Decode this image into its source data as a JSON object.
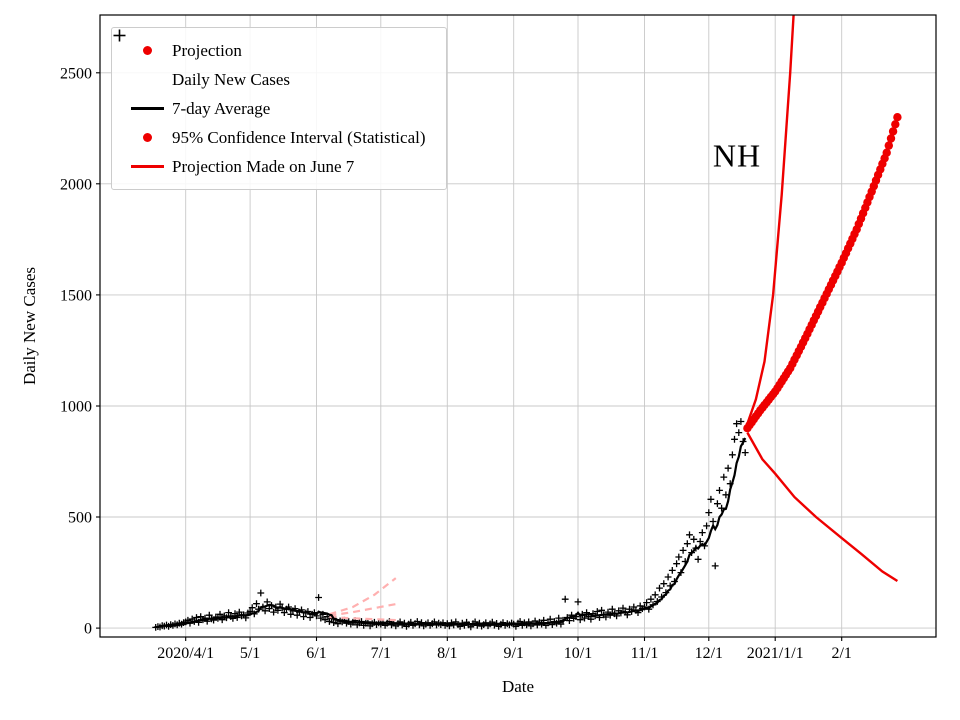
{
  "annotation": {
    "text": "NH"
  },
  "chart_data": {
    "type": "line",
    "title": "",
    "xlabel": "Date",
    "ylabel": "Daily New Cases",
    "grid": true,
    "legend_position": "upper left",
    "x_domain": [
      "2020-02-21",
      "2021-03-17"
    ],
    "y_domain": [
      -40,
      2760
    ],
    "x_ticks": [
      {
        "date": "2020-04-01",
        "label": "2020/4/1"
      },
      {
        "date": "2020-05-01",
        "label": "5/1"
      },
      {
        "date": "2020-06-01",
        "label": "6/1"
      },
      {
        "date": "2020-07-01",
        "label": "7/1"
      },
      {
        "date": "2020-08-01",
        "label": "8/1"
      },
      {
        "date": "2020-09-01",
        "label": "9/1"
      },
      {
        "date": "2020-10-01",
        "label": "10/1"
      },
      {
        "date": "2020-11-01",
        "label": "11/1"
      },
      {
        "date": "2020-12-01",
        "label": "12/1"
      },
      {
        "date": "2021-01-01",
        "label": "2021/1/1"
      },
      {
        "date": "2021-02-01",
        "label": "2/1"
      }
    ],
    "y_ticks": [
      {
        "value": 0,
        "label": "0"
      },
      {
        "value": 500,
        "label": "500"
      },
      {
        "value": 1000,
        "label": "1000"
      },
      {
        "value": 1500,
        "label": "1500"
      },
      {
        "value": 2000,
        "label": "2000"
      },
      {
        "value": 2500,
        "label": "2500"
      }
    ],
    "colors": {
      "red": "#ee0000",
      "black": "#000000",
      "pink": "#ffb0b0",
      "grid": "#c8c8c8"
    },
    "legend": [
      {
        "label": "Projection",
        "marker": "dot",
        "color": "#ee0000"
      },
      {
        "label": "Daily New Cases",
        "marker": "plus",
        "color": "#000000"
      },
      {
        "label": "7-day Average",
        "marker": "line",
        "color": "#000000"
      },
      {
        "label": "95% Confidence Interval (Statistical)",
        "marker": "dot",
        "color": "#ee0000"
      },
      {
        "label": "Projection Made on June 7",
        "marker": "line",
        "color": "#ee0000"
      }
    ],
    "series": {
      "daily_new_cases": {
        "type": "scatter-plus",
        "color": "#000000",
        "start": "2020-03-18",
        "values": [
          3,
          7,
          5,
          11,
          9,
          14,
          8,
          16,
          12,
          19,
          15,
          22,
          18,
          25,
          28,
          35,
          22,
          41,
          30,
          48,
          26,
          52,
          38,
          45,
          31,
          58,
          42,
          36,
          50,
          44,
          62,
          38,
          55,
          47,
          70,
          52,
          44,
          65,
          48,
          72,
          55,
          60,
          46,
          68,
          75,
          92,
          64,
          110,
          85,
          158,
          95,
          78,
          118,
          88,
          102,
          72,
          95,
          80,
          108,
          90,
          70,
          85,
          95,
          62,
          78,
          88,
          58,
          72,
          82,
          52,
          68,
          75,
          48,
          62,
          70,
          55,
          138,
          45,
          62,
          38,
          52,
          30,
          44,
          25,
          38,
          20,
          32,
          28,
          35,
          22,
          30,
          18,
          26,
          34,
          15,
          24,
          30,
          12,
          22,
          28,
          10,
          20,
          26,
          16,
          24,
          18,
          26,
          12,
          22,
          30,
          15,
          24,
          10,
          20,
          28,
          14,
          22,
          8,
          18,
          26,
          12,
          20,
          30,
          15,
          25,
          10,
          18,
          24,
          12,
          20,
          28,
          14,
          22,
          16,
          24,
          12,
          20,
          10,
          24,
          14,
          28,
          16,
          8,
          22,
          12,
          26,
          15,
          6,
          20,
          28,
          12,
          22,
          9,
          16,
          24,
          11,
          19,
          27,
          13,
          21,
          8,
          17,
          25,
          12,
          20,
          15,
          23,
          18,
          8,
          22,
          30,
          12,
          24,
          15,
          28,
          10,
          20,
          32,
          14,
          26,
          18,
          35,
          12,
          24,
          40,
          16,
          30,
          22,
          45,
          18,
          35,
          130,
          48,
          34,
          58,
          44,
          52,
          118,
          38,
          62,
          45,
          70,
          52,
          40,
          65,
          55,
          75,
          48,
          80,
          60,
          50,
          72,
          58,
          85,
          65,
          55,
          78,
          68,
          90,
          72,
          60,
          85,
          75,
          95,
          80,
          70,
          100,
          88,
          95,
          115,
          85,
          130,
          105,
          150,
          120,
          180,
          140,
          200,
          160,
          230,
          190,
          260,
          210,
          290,
          320,
          250,
          350,
          300,
          380,
          420,
          340,
          400,
          360,
          310,
          390,
          430,
          370,
          460,
          520,
          580,
          480,
          280,
          560,
          620,
          540,
          680,
          600,
          720,
          650,
          780,
          850,
          920,
          880,
          930,
          840,
          790
        ]
      },
      "seven_day_average": {
        "type": "line",
        "color": "#000000",
        "derived_from": "daily_new_cases",
        "window": 7
      },
      "projection": {
        "type": "dotted-line",
        "color": "#ee0000",
        "points": [
          [
            "2020-12-19",
            900
          ],
          [
            "2020-12-25",
            980
          ],
          [
            "2021-01-01",
            1065
          ],
          [
            "2021-01-08",
            1170
          ],
          [
            "2021-01-15",
            1305
          ],
          [
            "2021-01-22",
            1445
          ],
          [
            "2021-02-01",
            1645
          ],
          [
            "2021-02-08",
            1795
          ],
          [
            "2021-02-15",
            1965
          ],
          [
            "2021-02-22",
            2140
          ],
          [
            "2021-02-27",
            2300
          ]
        ]
      },
      "ci_upper": {
        "type": "line",
        "color": "#ee0000",
        "points": [
          [
            "2020-12-19",
            920
          ],
          [
            "2020-12-23",
            1030
          ],
          [
            "2020-12-27",
            1200
          ],
          [
            "2020-12-31",
            1500
          ],
          [
            "2021-01-04",
            1950
          ],
          [
            "2021-01-08",
            2500
          ],
          [
            "2021-01-11",
            3000
          ]
        ]
      },
      "ci_lower": {
        "type": "line",
        "color": "#ee0000",
        "points": [
          [
            "2020-12-19",
            880
          ],
          [
            "2020-12-26",
            760
          ],
          [
            "2021-01-01",
            695
          ],
          [
            "2021-01-10",
            590
          ],
          [
            "2021-01-20",
            500
          ],
          [
            "2021-02-01",
            405
          ],
          [
            "2021-02-10",
            335
          ],
          [
            "2021-02-20",
            255
          ],
          [
            "2021-02-27",
            212
          ]
        ]
      },
      "june7_projection": {
        "type": "dashed-lines",
        "color": "#ffb0b0",
        "lines": [
          [
            [
              "2020-06-07",
              62
            ],
            [
              "2020-06-18",
              95
            ],
            [
              "2020-06-28",
              150
            ],
            [
              "2020-07-08",
              225
            ]
          ],
          [
            [
              "2020-06-07",
              56
            ],
            [
              "2020-06-18",
              72
            ],
            [
              "2020-06-28",
              90
            ],
            [
              "2020-07-08",
              108
            ]
          ],
          [
            [
              "2020-06-07",
              50
            ],
            [
              "2020-06-18",
              44
            ],
            [
              "2020-06-28",
              40
            ],
            [
              "2020-07-08",
              36
            ]
          ]
        ]
      }
    }
  }
}
